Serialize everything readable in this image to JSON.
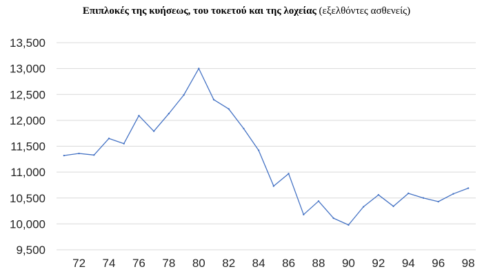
{
  "chart_data": {
    "type": "line",
    "title": "Επιπλοκές της κυήσεως, του τοκετού και της λοχείας",
    "subtitle": "(εξελθόντες ασθενείς)",
    "xlabel": "",
    "ylabel": "",
    "ylim": [
      9500,
      13500
    ],
    "y_ticks": [
      "9,500",
      "10,000",
      "10,500",
      "11,000",
      "11,500",
      "12,000",
      "12,500",
      "13,000",
      "13,500"
    ],
    "x_ticks": [
      "72",
      "74",
      "76",
      "78",
      "80",
      "82",
      "84",
      "86",
      "88",
      "90",
      "92",
      "94",
      "96",
      "98"
    ],
    "grid": true,
    "legend": "none",
    "colors": {
      "line": "#4472c4",
      "grid": "#d9d9d9"
    },
    "x": [
      71,
      72,
      73,
      74,
      75,
      76,
      77,
      78,
      79,
      80,
      81,
      82,
      83,
      84,
      85,
      86,
      87,
      88,
      89,
      90,
      91,
      92,
      93,
      94,
      95,
      96,
      97,
      98
    ],
    "series": [
      {
        "values": [
          11320,
          11360,
          11330,
          11650,
          11550,
          12090,
          11790,
          12130,
          12490,
          13000,
          12400,
          12220,
          11840,
          11420,
          10730,
          10970,
          10180,
          10440,
          10110,
          9980,
          10330,
          10560,
          10340,
          10590,
          10500,
          10430,
          10580,
          10690
        ]
      }
    ]
  }
}
